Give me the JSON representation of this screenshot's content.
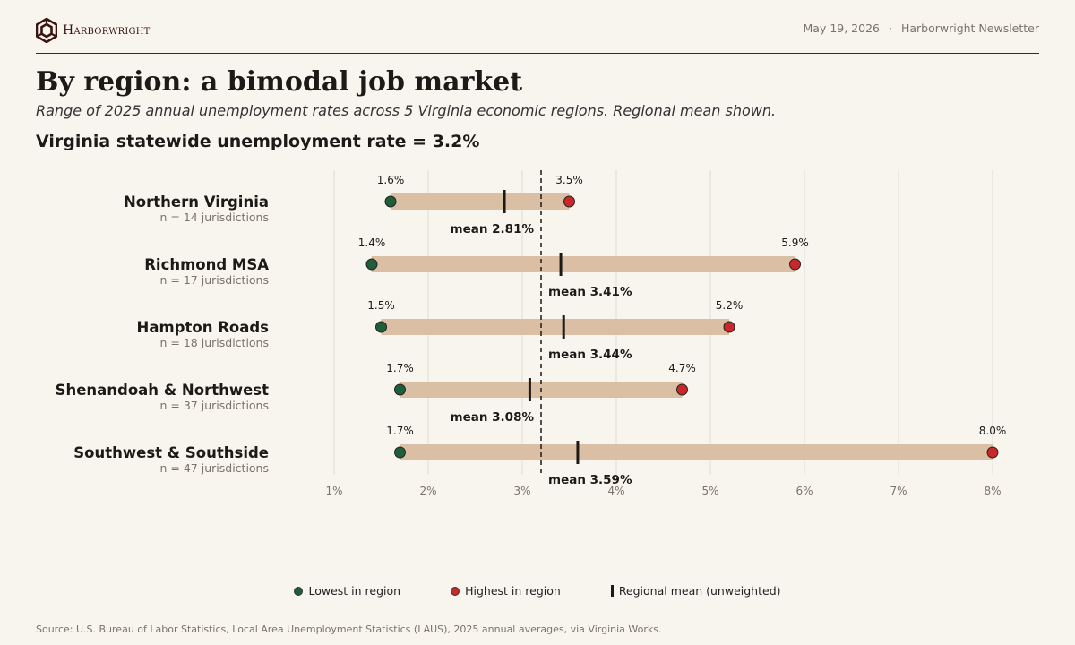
{
  "header": {
    "brand": "Harborwright",
    "date": "May 19, 2026",
    "separator": "·",
    "newsletter": "Harborwright Newsletter"
  },
  "title": "By region: a bimodal job market",
  "subtitle": "Range of 2025 annual unemployment rates across 5 Virginia economic regions.  Regional mean shown.",
  "headline": "Virginia statewide unemployment rate = 3.2%",
  "legend": {
    "low": "Lowest in region",
    "high": "Highest in region",
    "mean": "Regional mean (unweighted)"
  },
  "source": "Source: U.S. Bureau of Labor Statistics, Local Area Unemployment Statistics (LAUS), 2025 annual averages, via Virginia Works.",
  "colors": {
    "low": "#1e5e38",
    "high": "#c8282a",
    "bar": "#dbbfa4",
    "mean": "#1c1a17",
    "accent": "#5a1a14"
  },
  "chart_data": {
    "type": "dumbbell",
    "xlim": [
      1,
      8
    ],
    "xticks": [
      "1%",
      "2%",
      "3%",
      "4%",
      "5%",
      "6%",
      "7%",
      "8%"
    ],
    "reference_line": {
      "value": 3.2
    },
    "regions": [
      {
        "name": "Northern Virginia",
        "n_label": "n = 14 jurisdictions",
        "low": 1.6,
        "low_label": "1.6%",
        "high": 3.5,
        "high_label": "3.5%",
        "mean": 2.81,
        "mean_label": "mean 2.81%"
      },
      {
        "name": "Richmond MSA",
        "n_label": "n = 17 jurisdictions",
        "low": 1.4,
        "low_label": "1.4%",
        "high": 5.9,
        "high_label": "5.9%",
        "mean": 3.41,
        "mean_label": "mean 3.41%"
      },
      {
        "name": "Hampton Roads",
        "n_label": "n = 18 jurisdictions",
        "low": 1.5,
        "low_label": "1.5%",
        "high": 5.2,
        "high_label": "5.2%",
        "mean": 3.44,
        "mean_label": "mean 3.44%"
      },
      {
        "name": "Shenandoah & Northwest",
        "n_label": "n = 37 jurisdictions",
        "low": 1.7,
        "low_label": "1.7%",
        "high": 4.7,
        "high_label": "4.7%",
        "mean": 3.08,
        "mean_label": "mean 3.08%"
      },
      {
        "name": "Southwest & Southside",
        "n_label": "n = 47 jurisdictions",
        "low": 1.7,
        "low_label": "1.7%",
        "high": 8.0,
        "high_label": "8.0%",
        "mean": 3.59,
        "mean_label": "mean 3.59%"
      }
    ]
  }
}
